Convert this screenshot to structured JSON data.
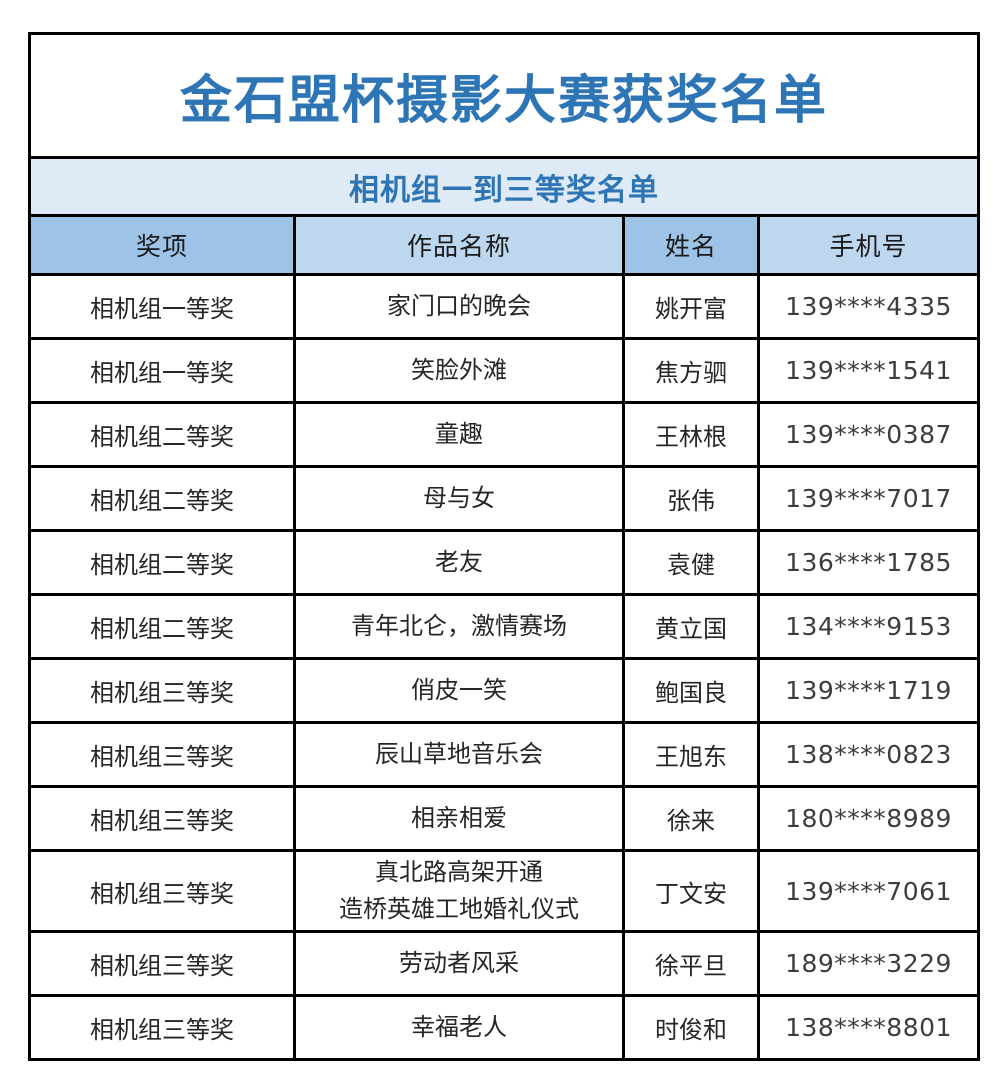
{
  "page": {
    "title": "金石盟杯摄影大赛获奖名单",
    "subtitle": "相机组一到三等奖名单"
  },
  "colors": {
    "title-text": "#2E75B6",
    "subtitle-bg": "#DEEAF6",
    "header-bg-dark": "#9DC3E6",
    "header-bg-light": "#BDD7EE",
    "border": "#000000",
    "body-text": "#262626"
  },
  "table": {
    "columns": [
      {
        "key": "award",
        "label": "奖项"
      },
      {
        "key": "work",
        "label": "作品名称"
      },
      {
        "key": "name",
        "label": "姓名"
      },
      {
        "key": "phone",
        "label": "手机号"
      }
    ],
    "rows": [
      {
        "award": "相机组一等奖",
        "work": "家门口的晚会",
        "name": "姚开富",
        "phone": "139****4335"
      },
      {
        "award": "相机组一等奖",
        "work": "笑脸外滩",
        "name": "焦方驷",
        "phone": "139****1541"
      },
      {
        "award": "相机组二等奖",
        "work": "童趣",
        "name": "王林根",
        "phone": "139****0387"
      },
      {
        "award": "相机组二等奖",
        "work": "母与女",
        "name": "张伟",
        "phone": "139****7017"
      },
      {
        "award": "相机组二等奖",
        "work": "老友",
        "name": "袁健",
        "phone": "136****1785"
      },
      {
        "award": "相机组二等奖",
        "work": "青年北仑，激情赛场",
        "name": "黄立国",
        "phone": "134****9153"
      },
      {
        "award": "相机组三等奖",
        "work": "俏皮一笑",
        "name": "鲍国良",
        "phone": "139****1719"
      },
      {
        "award": "相机组三等奖",
        "work": "辰山草地音乐会",
        "name": "王旭东",
        "phone": "138****0823"
      },
      {
        "award": "相机组三等奖",
        "work": "相亲相爱",
        "name": "徐来",
        "phone": "180****8989"
      },
      {
        "award": "相机组三等奖",
        "work": "真北路高架开通\n造桥英雄工地婚礼仪式",
        "name": "丁文安",
        "phone": "139****7061"
      },
      {
        "award": "相机组三等奖",
        "work": "劳动者风采",
        "name": "徐平旦",
        "phone": "189****3229"
      },
      {
        "award": "相机组三等奖",
        "work": "幸福老人",
        "name": "时俊和",
        "phone": "138****8801"
      }
    ]
  }
}
